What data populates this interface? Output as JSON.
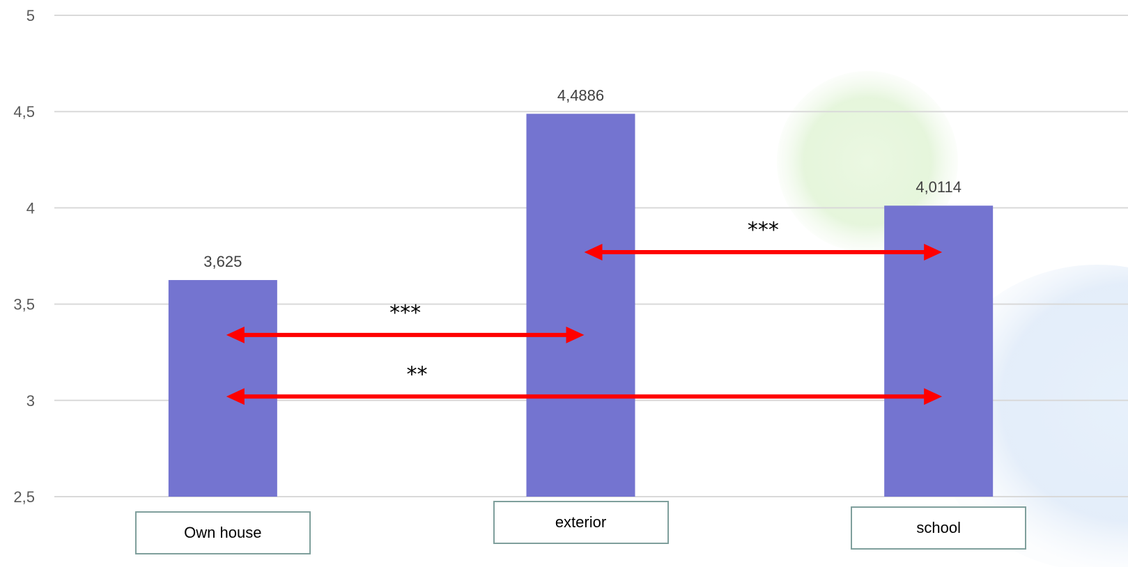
{
  "chart_data": {
    "type": "bar",
    "categories": [
      "Own house",
      "exterior",
      "school"
    ],
    "values": [
      3.625,
      4.4886,
      4.0114
    ],
    "data_labels": [
      "3,625",
      "4,4886",
      "4,0114"
    ],
    "ylim": [
      2.5,
      5
    ],
    "yticks": [
      2.5,
      3,
      3.5,
      4,
      4.5,
      5
    ],
    "ytick_labels": [
      "2,5",
      "3",
      "3,5",
      "4",
      "4,5",
      "5"
    ],
    "grid": true,
    "title": "",
    "xlabel": "",
    "ylabel": "",
    "comparisons": [
      {
        "from": "Own house",
        "to": "exterior",
        "y": 3.34,
        "label": "***"
      },
      {
        "from": "Own house",
        "to": "school",
        "y": 3.02,
        "label": "**"
      },
      {
        "from": "exterior",
        "to": "school",
        "y": 3.77,
        "label": "***"
      }
    ],
    "colors": {
      "bar": "#7474d0",
      "arrow": "#ff0000",
      "grid": "#d9d9d9",
      "category_box_border": "#7f9f9c"
    }
  }
}
